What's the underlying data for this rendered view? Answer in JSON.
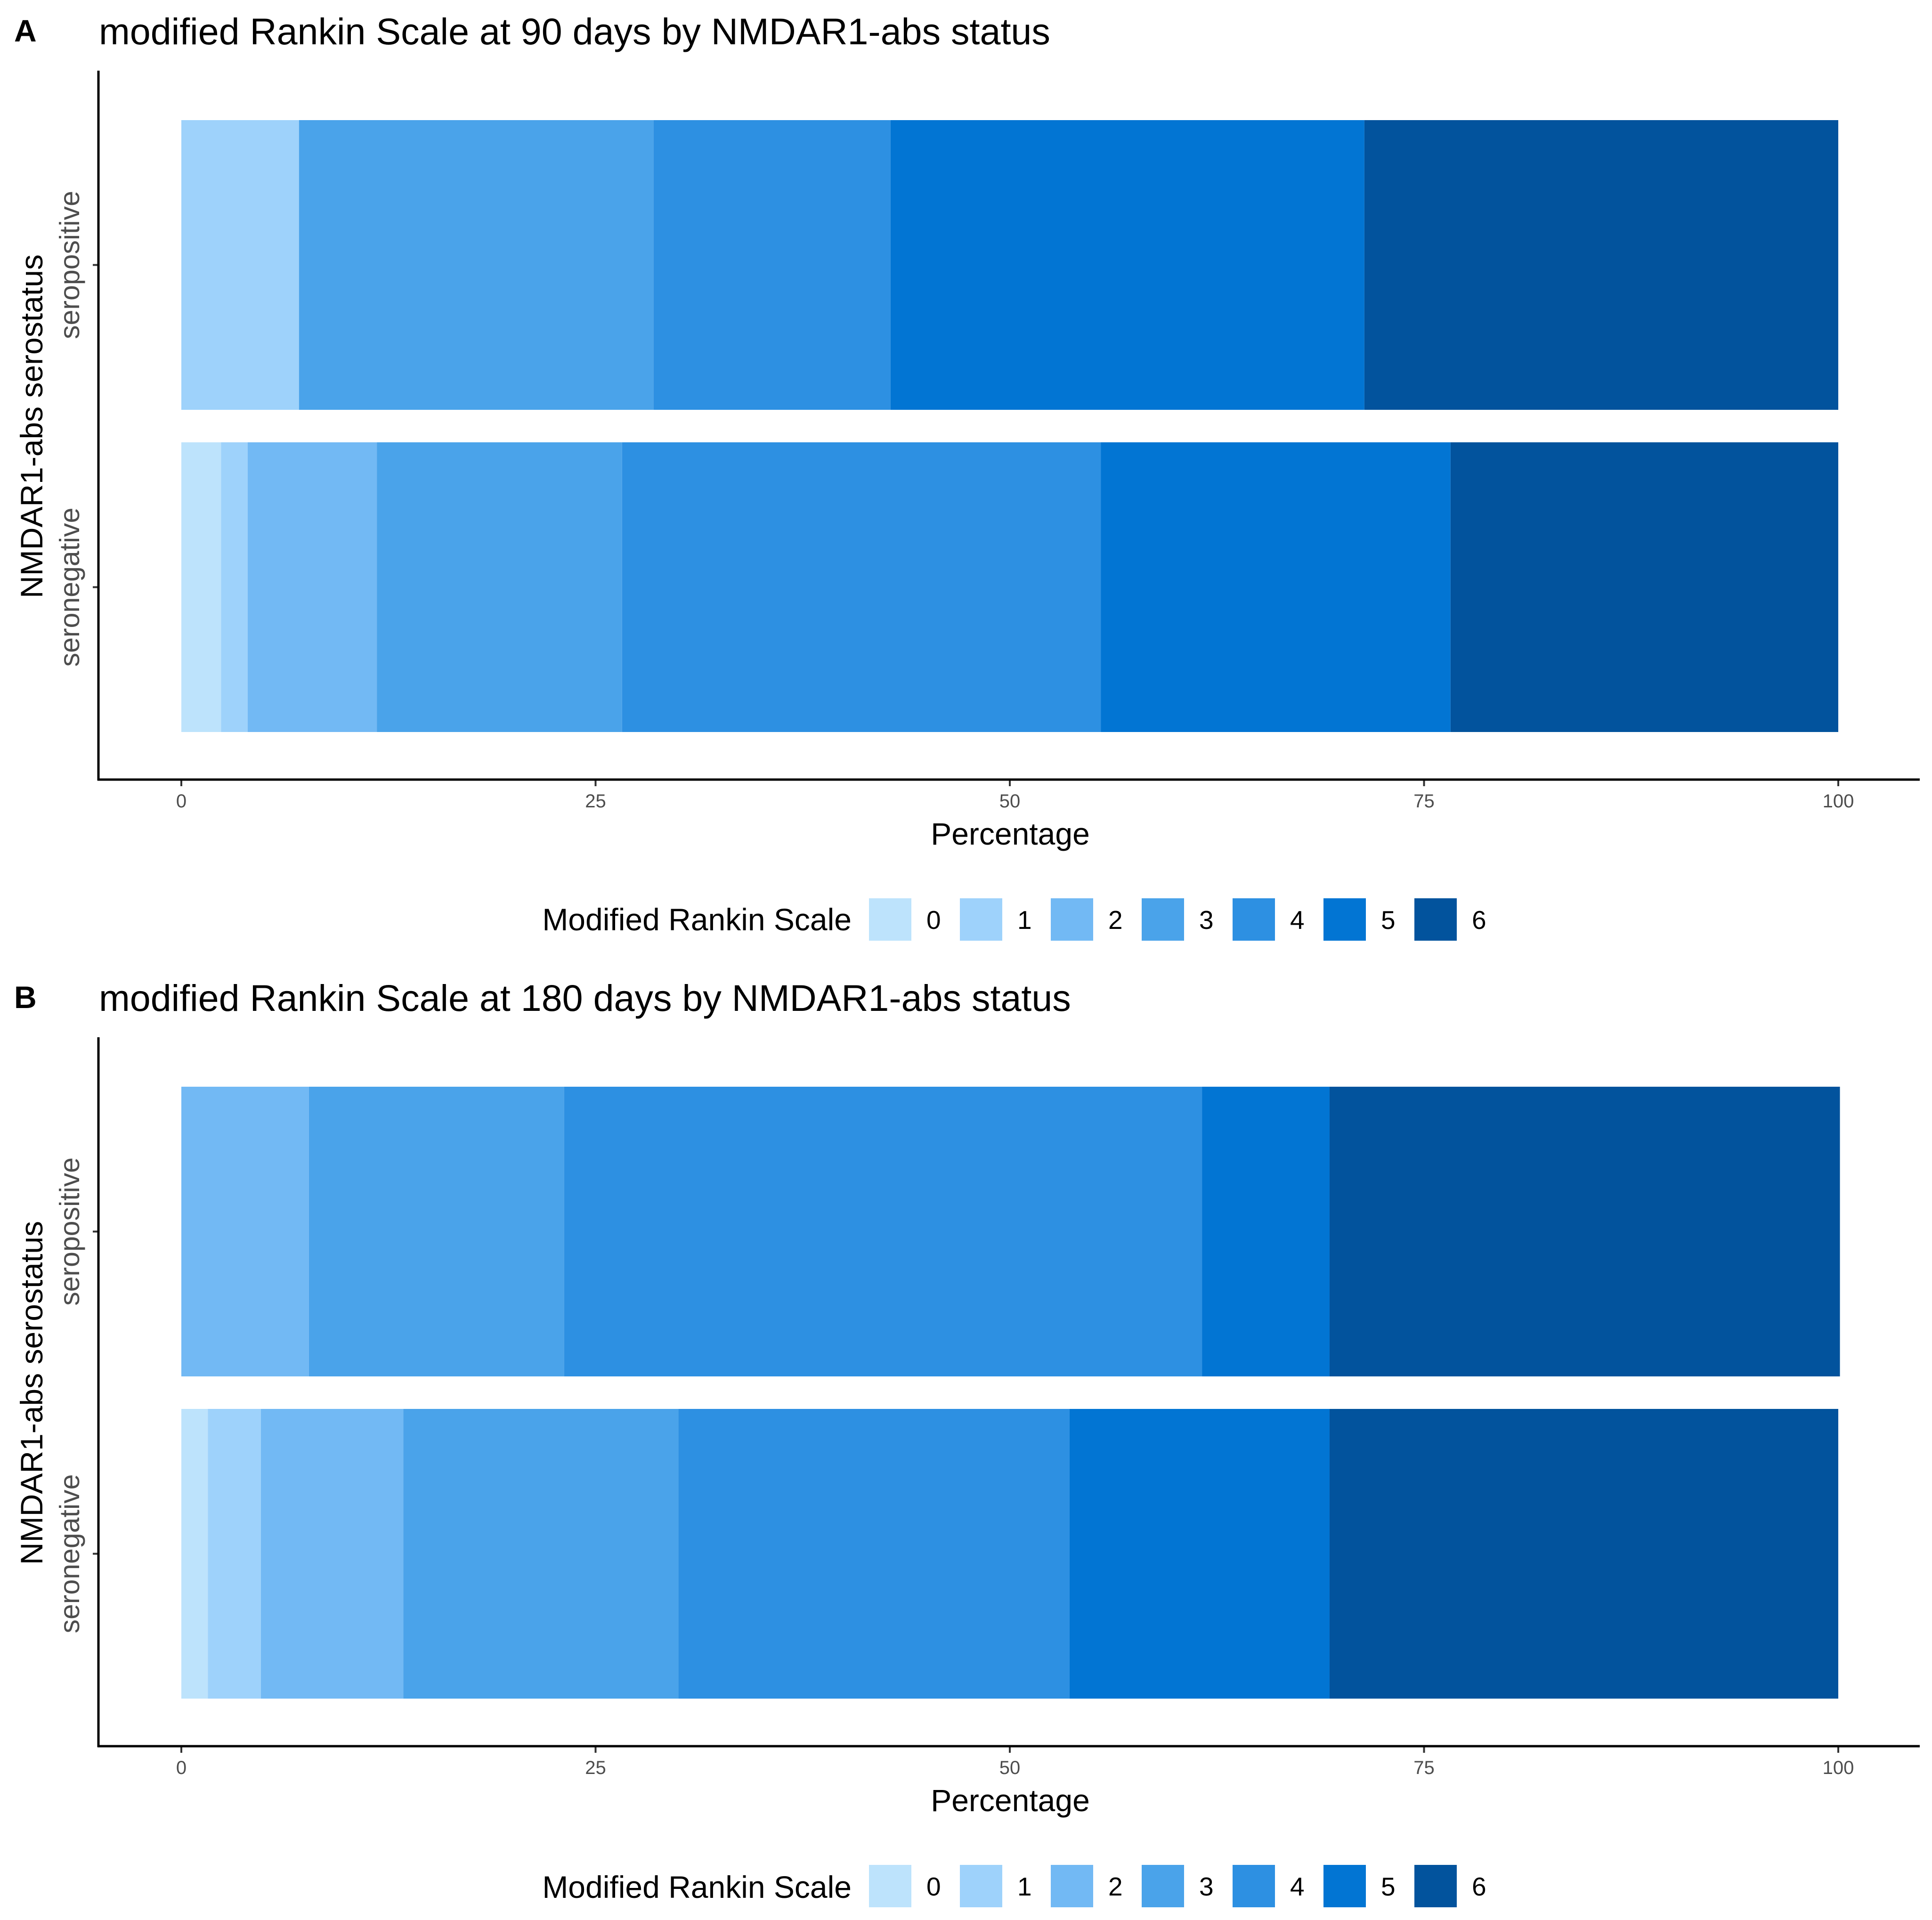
{
  "colors": {
    "0": "#bde3fc",
    "1": "#9ed2fb",
    "2": "#72b9f4",
    "3": "#4aa3ea",
    "4": "#2d90e2",
    "5": "#0275d3",
    "6": "#02539d",
    "axis": "#000000",
    "tick_text": "#4d4d4d"
  },
  "legend": {
    "title": "Modified Rankin Scale",
    "levels": [
      "0",
      "1",
      "2",
      "3",
      "4",
      "5",
      "6"
    ]
  },
  "chart_data": [
    {
      "panel": "A",
      "type": "bar",
      "orientation": "horizontal",
      "stacked": true,
      "title": "modified Rankin Scale at 90 days by NMDAR1-abs status",
      "xlabel": "Percentage",
      "ylabel": "NMDAR1-abs serostatus",
      "xlim": [
        0,
        100
      ],
      "xticks": [
        "0",
        "25",
        "50",
        "75",
        "100"
      ],
      "categories": [
        "seropositive",
        "seronegative"
      ],
      "series": [
        {
          "name": "0",
          "values": [
            0.0,
            2.4
          ]
        },
        {
          "name": "1",
          "values": [
            7.1,
            1.6
          ]
        },
        {
          "name": "2",
          "values": [
            0.0,
            7.8
          ]
        },
        {
          "name": "3",
          "values": [
            21.4,
            14.8
          ]
        },
        {
          "name": "4",
          "values": [
            14.3,
            28.9
          ]
        },
        {
          "name": "5",
          "values": [
            28.6,
            21.1
          ]
        },
        {
          "name": "6",
          "values": [
            28.6,
            23.4
          ]
        }
      ]
    },
    {
      "panel": "B",
      "type": "bar",
      "orientation": "horizontal",
      "stacked": true,
      "title": "modified Rankin Scale at 180 days by NMDAR1-abs status",
      "xlabel": "Percentage",
      "ylabel": "NMDAR1-abs serostatus",
      "xlim": [
        0,
        100
      ],
      "xticks": [
        "0",
        "25",
        "50",
        "75",
        "100"
      ],
      "categories": [
        "seropositive",
        "seronegative"
      ],
      "series": [
        {
          "name": "0",
          "values": [
            0.0,
            1.6
          ]
        },
        {
          "name": "1",
          "values": [
            0.0,
            3.2
          ]
        },
        {
          "name": "2",
          "values": [
            7.7,
            8.6
          ]
        },
        {
          "name": "3",
          "values": [
            15.4,
            16.6
          ]
        },
        {
          "name": "4",
          "values": [
            38.5,
            23.6
          ]
        },
        {
          "name": "5",
          "values": [
            7.7,
            15.7
          ]
        },
        {
          "name": "6",
          "values": [
            30.8,
            30.7
          ]
        }
      ]
    }
  ]
}
